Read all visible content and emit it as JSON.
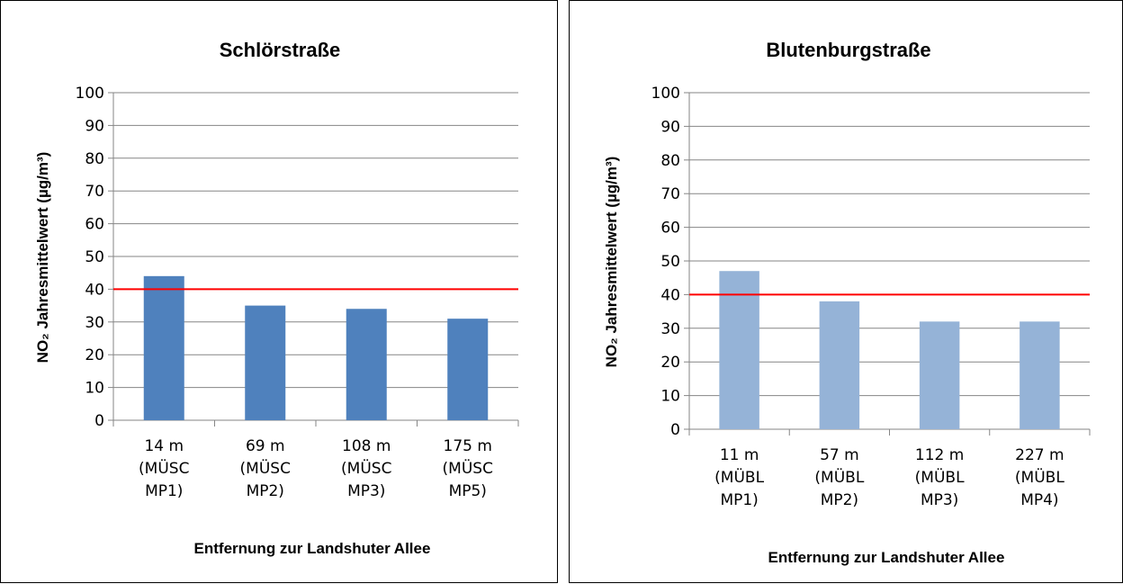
{
  "chart_data": [
    {
      "type": "bar",
      "title": "Schlörstraße",
      "xlabel": "Entfernung zur Landshuter Allee",
      "ylabel": "NO₂ Jahresmittelwert (µg/m³)",
      "ylim": [
        0,
        100
      ],
      "yticks": [
        "0",
        "10",
        "20",
        "30",
        "40",
        "50",
        "60",
        "70",
        "80",
        "90",
        "100"
      ],
      "categories": [
        [
          "14 m",
          "(MÜSC",
          "MP1)"
        ],
        [
          "69 m",
          "(MÜSC",
          "MP2)"
        ],
        [
          "108 m",
          "(MÜSC",
          "MP3)"
        ],
        [
          "175 m",
          "(MÜSC",
          "MP5)"
        ]
      ],
      "values": [
        44,
        35,
        34,
        31
      ],
      "limit_line": 40,
      "bar_color": "#4f81bd",
      "limit_color": "#ff0000",
      "grid": true
    },
    {
      "type": "bar",
      "title": "Blutenburgstraße",
      "xlabel": "Entfernung zur Landshuter Allee",
      "ylabel": "NO₂ Jahresmittelwert (µg/m³)",
      "ylim": [
        0,
        100
      ],
      "yticks": [
        "0",
        "10",
        "20",
        "30",
        "40",
        "50",
        "60",
        "70",
        "80",
        "90",
        "100"
      ],
      "categories": [
        [
          "11 m",
          "(MÜBL",
          "MP1)"
        ],
        [
          "57 m",
          "(MÜBL",
          "MP2)"
        ],
        [
          "112 m",
          "(MÜBL",
          "MP3)"
        ],
        [
          "227 m",
          "(MÜBL",
          "MP4)"
        ]
      ],
      "values": [
        47,
        38,
        32,
        32
      ],
      "limit_line": 40,
      "bar_color": "#95b3d7",
      "limit_color": "#ff0000",
      "grid": true
    }
  ]
}
